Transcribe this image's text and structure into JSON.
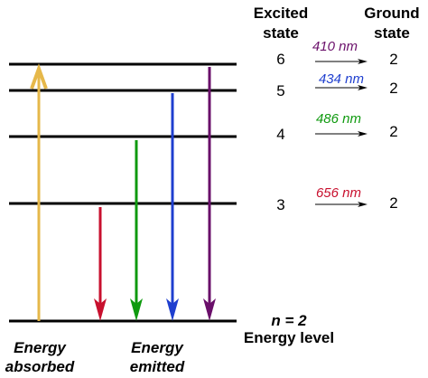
{
  "headers": {
    "excited_line1": "Excited",
    "excited_line2": "state",
    "ground_line1": "Ground",
    "ground_line2": "state"
  },
  "transitions": [
    {
      "excited": "6",
      "wavelength": "410 nm",
      "ground": "2",
      "color": "#6a0f6a"
    },
    {
      "excited": "5",
      "wavelength": "434 nm",
      "ground": "2",
      "color": "#1f3fcf"
    },
    {
      "excited": "4",
      "wavelength": "486 nm",
      "ground": "2",
      "color": "#0f9a0f"
    },
    {
      "excited": "3",
      "wavelength": "656 nm",
      "ground": "2",
      "color": "#c8102e"
    }
  ],
  "absorbed": {
    "line1": "Energy",
    "line2": "absorbed",
    "color": "#e6b84a"
  },
  "emitted": {
    "line1": "Energy",
    "line2": "emitted"
  },
  "baseline": {
    "n_label": "n = 2",
    "level_label": "Energy level"
  },
  "colors": {
    "level_line": "#000000",
    "arrow_656": "#c8102e",
    "arrow_486": "#0f9a0f",
    "arrow_434": "#1f3fcf",
    "arrow_410": "#6a0f6a",
    "arrow_absorbed": "#e6b84a"
  }
}
